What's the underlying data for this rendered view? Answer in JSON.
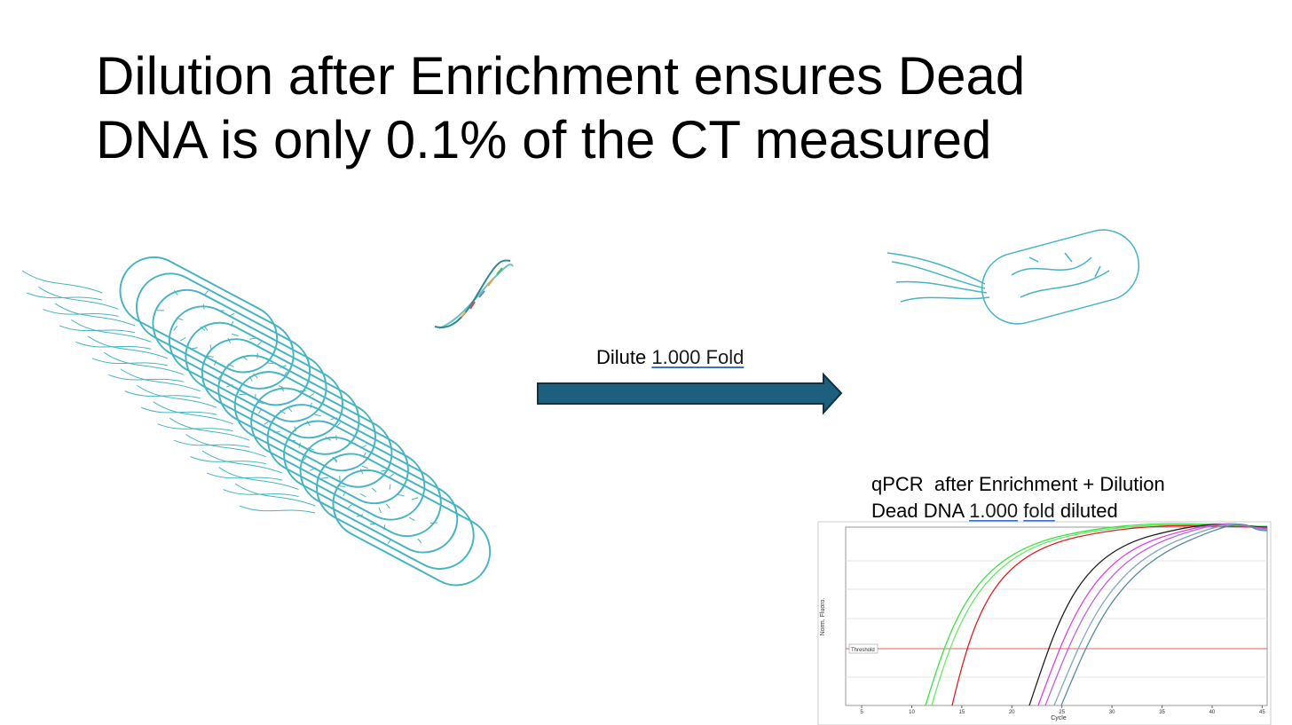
{
  "title": {
    "lines": [
      "Dilution after Enrichment ensures Dead",
      "DNA is only 0.1% of the CT measured"
    ]
  },
  "arrow_label": {
    "text": "Dilute",
    "underlined": "1.000 Fold"
  },
  "qpcr": {
    "caption_line1": "qPCR  after Enrichment + Dilution",
    "caption_line2": {
      "start": "Dead DNA",
      "underlined_1": "1.000",
      "underlined_2": "fold",
      "end": "diluted"
    },
    "chart": {
      "x_label": "Cycle",
      "y_label": "Norm. Fluoro.",
      "threshold_label": "Threshold",
      "xlim": [
        3.4,
        45.5
      ],
      "xticks": [
        5,
        10,
        15,
        20,
        25,
        30,
        35,
        40,
        45
      ]
    }
  }
}
